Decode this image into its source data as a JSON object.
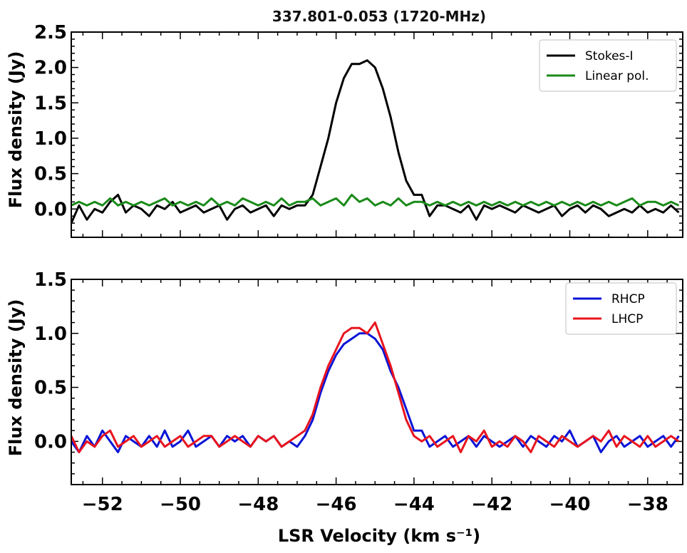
{
  "chart_data": [
    {
      "type": "line",
      "title": "337.801-0.053 (1720-MHz)",
      "xlabel": "",
      "ylabel": "Flux density (Jy)",
      "xlim": [
        -52.8,
        -37.1
      ],
      "ylim": [
        -0.4,
        2.5
      ],
      "yticks": [
        0.0,
        0.5,
        1.0,
        1.5,
        2.0,
        2.5
      ],
      "ytick_labels": [
        "0.0",
        "0.5",
        "1.0",
        "1.5",
        "2.0",
        "2.5"
      ],
      "grid": false,
      "legend_position": "top-right",
      "series": [
        {
          "name": "Stokes-I",
          "color": "#000000",
          "x": [
            -52.8,
            -52.6,
            -52.4,
            -52.2,
            -52.0,
            -51.8,
            -51.6,
            -51.4,
            -51.2,
            -51.0,
            -50.8,
            -50.6,
            -50.4,
            -50.2,
            -50.0,
            -49.8,
            -49.6,
            -49.4,
            -49.2,
            -49.0,
            -48.8,
            -48.6,
            -48.4,
            -48.2,
            -48.0,
            -47.8,
            -47.6,
            -47.4,
            -47.2,
            -47.0,
            -46.8,
            -46.6,
            -46.4,
            -46.2,
            -46.0,
            -45.8,
            -45.6,
            -45.4,
            -45.2,
            -45.0,
            -44.8,
            -44.6,
            -44.4,
            -44.2,
            -44.0,
            -43.8,
            -43.6,
            -43.4,
            -43.2,
            -43.0,
            -42.8,
            -42.6,
            -42.4,
            -42.2,
            -42.0,
            -41.8,
            -41.6,
            -41.4,
            -41.2,
            -41.0,
            -40.8,
            -40.6,
            -40.4,
            -40.2,
            -40.0,
            -39.8,
            -39.6,
            -39.4,
            -39.2,
            -39.0,
            -38.8,
            -38.6,
            -38.4,
            -38.2,
            -38.0,
            -37.8,
            -37.6,
            -37.4,
            -37.2
          ],
          "y": [
            -0.2,
            0.05,
            -0.15,
            0.0,
            -0.05,
            0.1,
            0.2,
            -0.05,
            0.05,
            0.0,
            -0.1,
            0.05,
            0.0,
            0.1,
            -0.05,
            0.0,
            0.05,
            -0.05,
            0.0,
            0.05,
            -0.15,
            0.0,
            0.05,
            -0.05,
            0.0,
            0.05,
            -0.1,
            0.05,
            0.0,
            0.05,
            0.05,
            0.2,
            0.6,
            1.0,
            1.5,
            1.85,
            2.05,
            2.05,
            2.1,
            2.0,
            1.7,
            1.3,
            0.8,
            0.4,
            0.2,
            0.2,
            -0.1,
            0.05,
            0.05,
            0.0,
            -0.05,
            0.05,
            -0.15,
            0.05,
            0.0,
            0.05,
            0.0,
            -0.05,
            0.05,
            0.0,
            -0.05,
            0.0,
            0.05,
            -0.1,
            0.0,
            0.05,
            -0.05,
            0.05,
            0.0,
            -0.1,
            -0.05,
            0.0,
            -0.05,
            0.05,
            -0.05,
            0.0,
            -0.05,
            0.05,
            -0.05
          ]
        },
        {
          "name": "Linear pol.",
          "color": "#1a8a1a",
          "x": [
            -52.8,
            -52.6,
            -52.4,
            -52.2,
            -52.0,
            -51.8,
            -51.6,
            -51.4,
            -51.2,
            -51.0,
            -50.8,
            -50.6,
            -50.4,
            -50.2,
            -50.0,
            -49.8,
            -49.6,
            -49.4,
            -49.2,
            -49.0,
            -48.8,
            -48.6,
            -48.4,
            -48.2,
            -48.0,
            -47.8,
            -47.6,
            -47.4,
            -47.2,
            -47.0,
            -46.8,
            -46.6,
            -46.4,
            -46.2,
            -46.0,
            -45.8,
            -45.6,
            -45.4,
            -45.2,
            -45.0,
            -44.8,
            -44.6,
            -44.4,
            -44.2,
            -44.0,
            -43.8,
            -43.6,
            -43.4,
            -43.2,
            -43.0,
            -42.8,
            -42.6,
            -42.4,
            -42.2,
            -42.0,
            -41.8,
            -41.6,
            -41.4,
            -41.2,
            -41.0,
            -40.8,
            -40.6,
            -40.4,
            -40.2,
            -40.0,
            -39.8,
            -39.6,
            -39.4,
            -39.2,
            -39.0,
            -38.8,
            -38.6,
            -38.4,
            -38.2,
            -38.0,
            -37.8,
            -37.6,
            -37.4,
            -37.2
          ],
          "y": [
            0.05,
            0.1,
            0.05,
            0.1,
            0.05,
            0.15,
            0.05,
            0.1,
            0.05,
            0.1,
            0.05,
            0.1,
            0.15,
            0.05,
            0.1,
            0.05,
            0.1,
            0.05,
            0.15,
            0.05,
            0.1,
            0.05,
            0.15,
            0.1,
            0.05,
            0.1,
            0.05,
            0.15,
            0.05,
            0.1,
            0.1,
            0.15,
            0.05,
            0.1,
            0.15,
            0.05,
            0.2,
            0.1,
            0.15,
            0.05,
            0.1,
            0.05,
            0.15,
            0.05,
            0.1,
            0.1,
            0.05,
            0.1,
            0.05,
            0.1,
            0.05,
            0.1,
            0.05,
            0.1,
            0.05,
            0.1,
            0.05,
            0.1,
            0.05,
            0.1,
            0.05,
            0.1,
            0.05,
            0.1,
            0.05,
            0.1,
            0.05,
            0.1,
            0.05,
            0.1,
            0.05,
            0.1,
            0.15,
            0.05,
            0.1,
            0.1,
            0.05,
            0.1,
            0.05
          ]
        }
      ]
    },
    {
      "type": "line",
      "title": "",
      "xlabel": "LSR Velocity (km s⁻¹)",
      "ylabel": "Flux density (Jy)",
      "xlim": [
        -52.8,
        -37.1
      ],
      "ylim": [
        -0.4,
        1.5
      ],
      "xticks": [
        -52,
        -50,
        -48,
        -46,
        -44,
        -42,
        -40,
        -38
      ],
      "xtick_labels": [
        "−52",
        "−50",
        "−48",
        "−46",
        "−44",
        "−42",
        "−40",
        "−38"
      ],
      "yticks": [
        0.0,
        0.5,
        1.0,
        1.5
      ],
      "ytick_labels": [
        "0.0",
        "0.5",
        "1.0",
        "1.5"
      ],
      "grid": false,
      "legend_position": "top-right",
      "series": [
        {
          "name": "RHCP",
          "color": "#0a14d6",
          "x": [
            -52.8,
            -52.6,
            -52.4,
            -52.2,
            -52.0,
            -51.8,
            -51.6,
            -51.4,
            -51.2,
            -51.0,
            -50.8,
            -50.6,
            -50.4,
            -50.2,
            -50.0,
            -49.8,
            -49.6,
            -49.4,
            -49.2,
            -49.0,
            -48.8,
            -48.6,
            -48.4,
            -48.2,
            -48.0,
            -47.8,
            -47.6,
            -47.4,
            -47.2,
            -47.0,
            -46.8,
            -46.6,
            -46.4,
            -46.2,
            -46.0,
            -45.8,
            -45.6,
            -45.4,
            -45.2,
            -45.0,
            -44.8,
            -44.6,
            -44.4,
            -44.2,
            -44.0,
            -43.8,
            -43.6,
            -43.4,
            -43.2,
            -43.0,
            -42.8,
            -42.6,
            -42.4,
            -42.2,
            -42.0,
            -41.8,
            -41.6,
            -41.4,
            -41.2,
            -41.0,
            -40.8,
            -40.6,
            -40.4,
            -40.2,
            -40.0,
            -39.8,
            -39.6,
            -39.4,
            -39.2,
            -39.0,
            -38.8,
            -38.6,
            -38.4,
            -38.2,
            -38.0,
            -37.8,
            -37.6,
            -37.4,
            -37.2
          ],
          "y": [
            0.0,
            -0.1,
            0.05,
            -0.05,
            0.1,
            0.0,
            -0.1,
            0.05,
            0.0,
            -0.05,
            0.05,
            -0.05,
            0.1,
            -0.05,
            0.0,
            0.1,
            -0.05,
            0.0,
            0.05,
            -0.05,
            0.05,
            0.0,
            0.05,
            -0.05,
            0.05,
            0.0,
            0.05,
            -0.05,
            0.0,
            -0.05,
            0.05,
            0.2,
            0.45,
            0.65,
            0.8,
            0.9,
            0.95,
            1.0,
            1.0,
            0.95,
            0.85,
            0.65,
            0.5,
            0.3,
            0.1,
            0.1,
            -0.05,
            0.0,
            0.05,
            -0.05,
            0.0,
            0.05,
            -0.05,
            0.05,
            0.0,
            -0.05,
            0.0,
            0.05,
            -0.05,
            0.05,
            0.0,
            -0.05,
            0.05,
            0.0,
            0.1,
            -0.05,
            0.0,
            0.05,
            -0.1,
            0.0,
            0.05,
            -0.05,
            0.0,
            0.05,
            -0.05,
            0.0,
            0.05,
            -0.05,
            0.05
          ]
        },
        {
          "name": "LHCP",
          "color": "#e8141e",
          "x": [
            -52.8,
            -52.6,
            -52.4,
            -52.2,
            -52.0,
            -51.8,
            -51.6,
            -51.4,
            -51.2,
            -51.0,
            -50.8,
            -50.6,
            -50.4,
            -50.2,
            -50.0,
            -49.8,
            -49.6,
            -49.4,
            -49.2,
            -49.0,
            -48.8,
            -48.6,
            -48.4,
            -48.2,
            -48.0,
            -47.8,
            -47.6,
            -47.4,
            -47.2,
            -47.0,
            -46.8,
            -46.6,
            -46.4,
            -46.2,
            -46.0,
            -45.8,
            -45.6,
            -45.4,
            -45.2,
            -45.0,
            -44.8,
            -44.6,
            -44.4,
            -44.2,
            -44.0,
            -43.8,
            -43.6,
            -43.4,
            -43.2,
            -43.0,
            -42.8,
            -42.6,
            -42.4,
            -42.2,
            -42.0,
            -41.8,
            -41.6,
            -41.4,
            -41.2,
            -41.0,
            -40.8,
            -40.6,
            -40.4,
            -40.2,
            -40.0,
            -39.8,
            -39.6,
            -39.4,
            -39.2,
            -39.0,
            -38.8,
            -38.6,
            -38.4,
            -38.2,
            -38.0,
            -37.8,
            -37.6,
            -37.4,
            -37.2
          ],
          "y": [
            0.05,
            -0.1,
            0.0,
            -0.05,
            0.05,
            0.1,
            -0.05,
            0.0,
            0.05,
            -0.05,
            0.0,
            0.05,
            -0.05,
            0.0,
            0.05,
            -0.05,
            0.0,
            0.05,
            0.05,
            -0.05,
            0.0,
            0.05,
            0.0,
            -0.05,
            0.05,
            0.0,
            0.05,
            -0.05,
            0.0,
            0.05,
            0.1,
            0.25,
            0.5,
            0.7,
            0.85,
            1.0,
            1.05,
            1.05,
            1.0,
            1.1,
            0.9,
            0.7,
            0.45,
            0.2,
            0.05,
            0.0,
            0.05,
            -0.05,
            0.0,
            0.05,
            -0.1,
            0.05,
            0.0,
            0.1,
            -0.05,
            0.0,
            -0.05,
            0.05,
            0.0,
            -0.1,
            0.05,
            0.0,
            -0.05,
            0.05,
            0.0,
            -0.05,
            0.0,
            0.05,
            0.0,
            0.1,
            -0.05,
            0.05,
            0.0,
            -0.05,
            0.05,
            -0.05,
            0.0,
            0.05,
            0.0
          ]
        }
      ]
    }
  ]
}
